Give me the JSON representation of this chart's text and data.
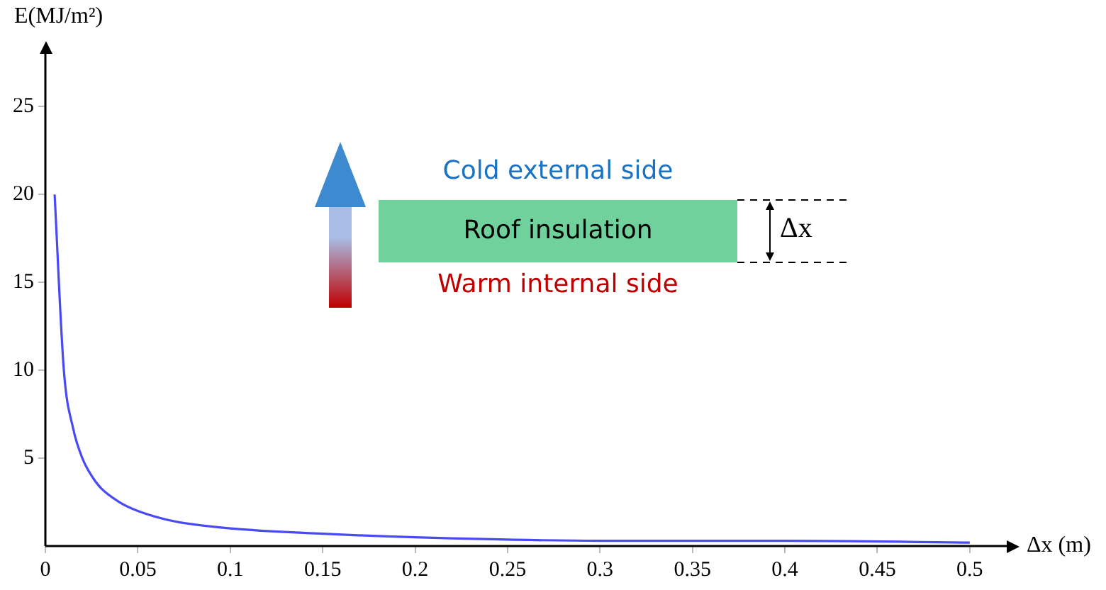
{
  "chart_data": {
    "type": "line",
    "xlabel": "Δx (m)",
    "ylabel": "E(MJ/m²)",
    "x": [
      0.005,
      0.01,
      0.015,
      0.02,
      0.025,
      0.03,
      0.04,
      0.05,
      0.07,
      0.1,
      0.15,
      0.2,
      0.3,
      0.4,
      0.5
    ],
    "series": [
      {
        "color": "#4a4af5",
        "values": [
          20,
          10,
          6.7,
          5,
          4,
          3.3,
          2.5,
          2,
          1.4,
          1,
          0.7,
          0.5,
          0.3,
          0.3,
          0.2
        ]
      }
    ],
    "xlim": [
      0,
      0.52
    ],
    "xticks": [
      0,
      0.05,
      0.1,
      0.15,
      0.2,
      0.25,
      0.3,
      0.35,
      0.4,
      0.45,
      0.5
    ],
    "ylim": [
      0,
      28
    ],
    "yticks": [
      5,
      10,
      15,
      20,
      25
    ],
    "marker": "none",
    "line_style": "solid",
    "legend": false,
    "annotations": [
      "Cold external side",
      "Roof insulation",
      "Warm internal side",
      "Δx"
    ]
  }
}
